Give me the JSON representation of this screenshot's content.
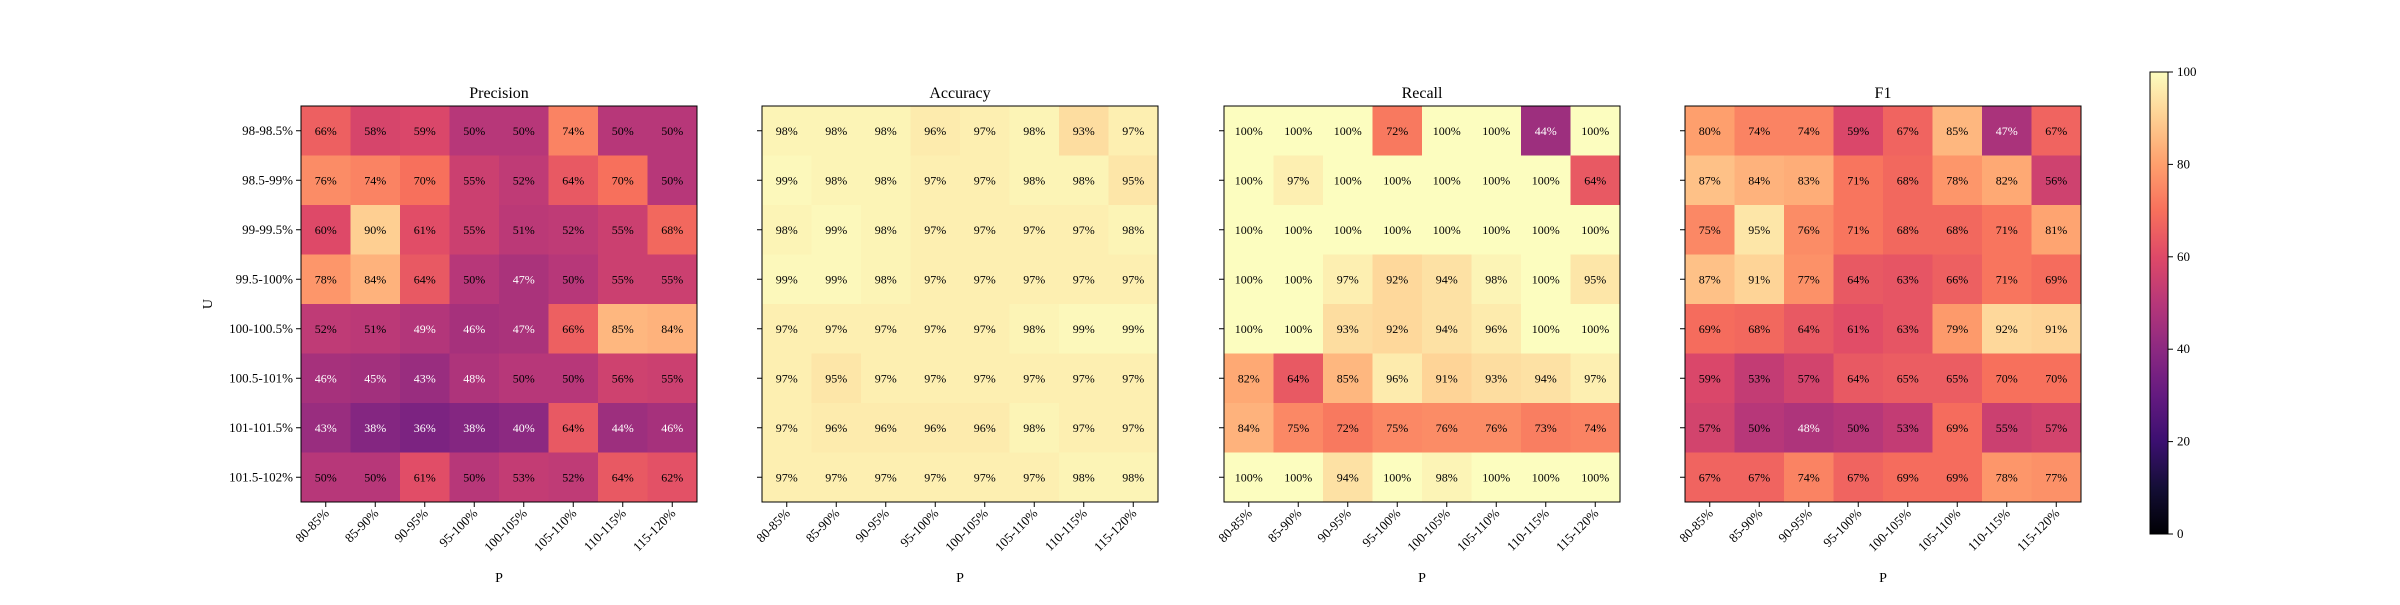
{
  "chart_data": {
    "type": "heatmap",
    "y_categories": [
      "98-98.5%",
      "98.5-99%",
      "99-99.5%",
      "99.5-100%",
      "100-100.5%",
      "100.5-101%",
      "101-101.5%",
      "101.5-102%"
    ],
    "x_categories": [
      "80-85%",
      "85-90%",
      "90-95%",
      "95-100%",
      "100-105%",
      "105-110%",
      "110-115%",
      "115-120%"
    ],
    "xlabel": "P",
    "ylabel": "U",
    "colormap": "magma",
    "colorbar": {
      "min": 0,
      "max": 100,
      "ticks": [
        0,
        20,
        40,
        60,
        80,
        100
      ]
    },
    "panels": [
      {
        "title": "Precision",
        "values": [
          [
            66,
            58,
            59,
            50,
            50,
            74,
            50,
            50
          ],
          [
            76,
            74,
            70,
            55,
            52,
            64,
            70,
            50
          ],
          [
            60,
            90,
            61,
            55,
            51,
            52,
            55,
            68
          ],
          [
            78,
            84,
            64,
            50,
            47,
            50,
            55,
            55
          ],
          [
            52,
            51,
            49,
            46,
            47,
            66,
            85,
            84
          ],
          [
            46,
            45,
            43,
            48,
            50,
            50,
            56,
            55
          ],
          [
            43,
            38,
            36,
            38,
            40,
            64,
            44,
            46
          ],
          [
            50,
            50,
            61,
            50,
            53,
            52,
            64,
            62
          ]
        ]
      },
      {
        "title": "Accuracy",
        "values": [
          [
            98,
            98,
            98,
            96,
            97,
            98,
            93,
            97
          ],
          [
            99,
            98,
            98,
            97,
            97,
            98,
            98,
            95
          ],
          [
            98,
            99,
            98,
            97,
            97,
            97,
            97,
            98
          ],
          [
            99,
            99,
            98,
            97,
            97,
            97,
            97,
            97
          ],
          [
            97,
            97,
            97,
            97,
            97,
            98,
            99,
            99
          ],
          [
            97,
            95,
            97,
            97,
            97,
            97,
            97,
            97
          ],
          [
            97,
            96,
            96,
            96,
            96,
            98,
            97,
            97
          ],
          [
            97,
            97,
            97,
            97,
            97,
            97,
            98,
            98
          ]
        ]
      },
      {
        "title": "Recall",
        "values": [
          [
            100,
            100,
            100,
            72,
            100,
            100,
            44,
            100
          ],
          [
            100,
            97,
            100,
            100,
            100,
            100,
            100,
            64
          ],
          [
            100,
            100,
            100,
            100,
            100,
            100,
            100,
            100
          ],
          [
            100,
            100,
            97,
            92,
            94,
            98,
            100,
            95
          ],
          [
            100,
            100,
            93,
            92,
            94,
            96,
            100,
            100
          ],
          [
            82,
            64,
            85,
            96,
            91,
            93,
            94,
            97
          ],
          [
            84,
            75,
            72,
            75,
            76,
            76,
            73,
            74
          ],
          [
            100,
            100,
            94,
            100,
            98,
            100,
            100,
            100
          ]
        ]
      },
      {
        "title": "F1",
        "values": [
          [
            80,
            74,
            74,
            59,
            67,
            85,
            47,
            67
          ],
          [
            87,
            84,
            83,
            71,
            68,
            78,
            82,
            56
          ],
          [
            75,
            95,
            76,
            71,
            68,
            68,
            71,
            81
          ],
          [
            87,
            91,
            77,
            64,
            63,
            66,
            71,
            69
          ],
          [
            69,
            68,
            64,
            61,
            63,
            79,
            92,
            91
          ],
          [
            59,
            53,
            57,
            64,
            65,
            65,
            70,
            70
          ],
          [
            57,
            50,
            48,
            50,
            53,
            69,
            55,
            57
          ],
          [
            67,
            67,
            74,
            67,
            69,
            69,
            78,
            77
          ]
        ]
      }
    ]
  }
}
